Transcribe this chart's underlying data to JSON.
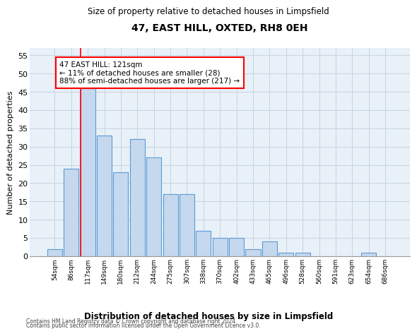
{
  "title": "47, EAST HILL, OXTED, RH8 0EH",
  "subtitle": "Size of property relative to detached houses in Limpsfield",
  "xlabel": "Distribution of detached houses by size in Limpsfield",
  "ylabel": "Number of detached properties",
  "bins": [
    "54sqm",
    "86sqm",
    "117sqm",
    "149sqm",
    "180sqm",
    "212sqm",
    "244sqm",
    "275sqm",
    "307sqm",
    "338sqm",
    "370sqm",
    "402sqm",
    "433sqm",
    "465sqm",
    "496sqm",
    "528sqm",
    "560sqm",
    "591sqm",
    "623sqm",
    "654sqm",
    "686sqm"
  ],
  "values": [
    2,
    24,
    46,
    33,
    23,
    32,
    27,
    17,
    17,
    7,
    5,
    5,
    2,
    4,
    1,
    1,
    0,
    0,
    0,
    1,
    0
  ],
  "bar_color": "#c5d8ed",
  "bar_edge_color": "#5b9bd5",
  "grid_color": "#c8d4e3",
  "background_color": "#e8f0f8",
  "marker_bin_index": 2,
  "marker_label": "47 EAST HILL: 121sqm",
  "annotation_line1": "← 11% of detached houses are smaller (28)",
  "annotation_line2": "88% of semi-detached houses are larger (217) →",
  "ylim": [
    0,
    57
  ],
  "yticks": [
    0,
    5,
    10,
    15,
    20,
    25,
    30,
    35,
    40,
    45,
    50,
    55
  ],
  "footer1": "Contains HM Land Registry data © Crown copyright and database right 2024.",
  "footer2": "Contains public sector information licensed under the Open Government Licence v3.0."
}
